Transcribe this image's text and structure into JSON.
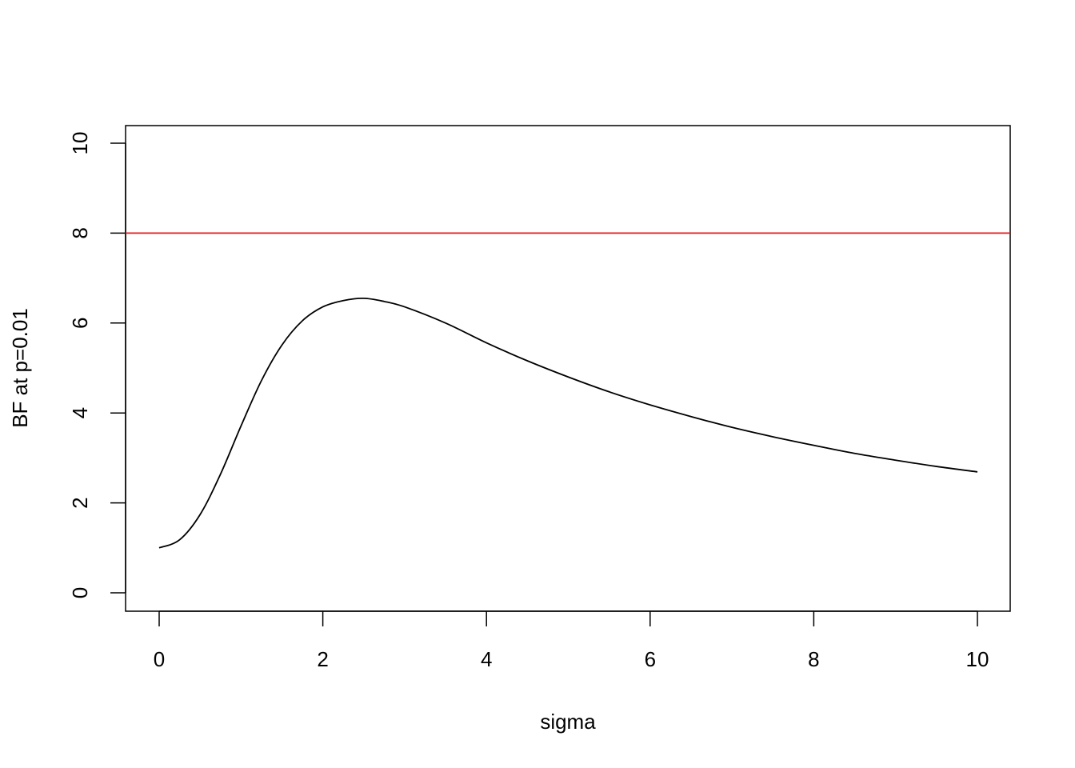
{
  "chart_data": {
    "type": "line",
    "title": "",
    "xlabel": "sigma",
    "ylabel": "BF at p=0.01",
    "xlim": [
      0,
      10
    ],
    "ylim": [
      0,
      10
    ],
    "x_ticks": [
      0,
      2,
      4,
      6,
      8,
      10
    ],
    "y_ticks": [
      0,
      2,
      4,
      6,
      8,
      10
    ],
    "grid": false,
    "series": [
      {
        "color": "#000000",
        "x": [
          0,
          0.25,
          0.5,
          0.75,
          1,
          1.25,
          1.5,
          1.75,
          2,
          2.25,
          2.5,
          2.75,
          3,
          3.5,
          4,
          4.5,
          5,
          5.5,
          6,
          6.5,
          7,
          7.5,
          8,
          8.5,
          9,
          9.5,
          10
        ],
        "y": [
          1,
          1.18,
          1.74,
          2.64,
          3.71,
          4.72,
          5.51,
          6.05,
          6.36,
          6.5,
          6.55,
          6.48,
          6.36,
          6.0,
          5.56,
          5.16,
          4.8,
          4.47,
          4.18,
          3.92,
          3.68,
          3.47,
          3.28,
          3.1,
          2.95,
          2.81,
          2.69
        ]
      }
    ],
    "hlines": [
      {
        "y": 8,
        "color": "#e41a1c"
      }
    ]
  }
}
